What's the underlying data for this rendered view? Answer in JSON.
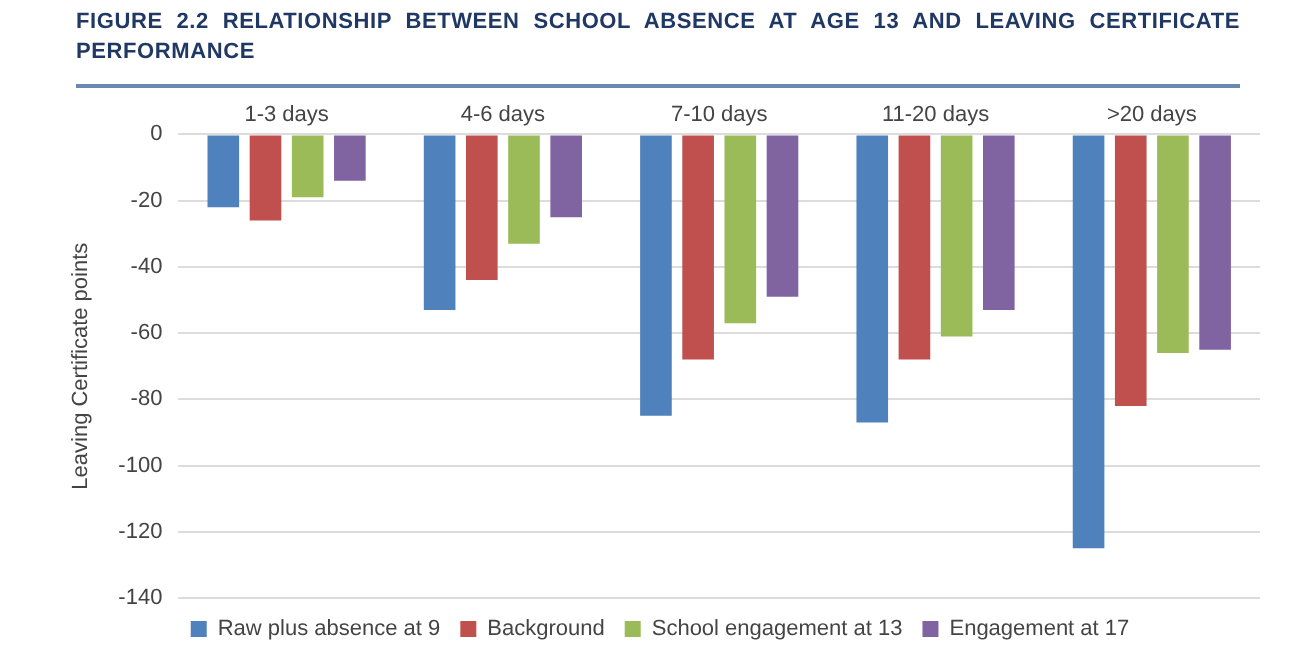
{
  "chart_data": {
    "type": "bar",
    "title": "FIGURE 2.2 RELATIONSHIP BETWEEN SCHOOL ABSENCE AT AGE 13 AND LEAVING CERTIFICATE PERFORMANCE",
    "ylabel": "Leaving Certificate points",
    "categories": [
      "1-3 days",
      "4-6 days",
      "7-10 days",
      "11-20 days",
      ">20 days"
    ],
    "series": [
      {
        "name": "Raw plus absence at 9",
        "color": "#4f81bd",
        "values": [
          -22,
          -53,
          -85,
          -87,
          -125
        ]
      },
      {
        "name": "Background",
        "color": "#c0504d",
        "values": [
          -26,
          -44,
          -68,
          -68,
          -82
        ]
      },
      {
        "name": "School engagement at 13",
        "color": "#9bbb59",
        "values": [
          -19,
          -33,
          -57,
          -61,
          -66
        ]
      },
      {
        "name": "Engagement at 17",
        "color": "#8064a2",
        "values": [
          -14,
          -25,
          -49,
          -53,
          -65
        ]
      }
    ],
    "ylim": [
      -140,
      0
    ],
    "yticks": [
      -140,
      -120,
      -100,
      -80,
      -60,
      -40,
      -20,
      0
    ],
    "grid": "y",
    "legend": "bottom"
  }
}
